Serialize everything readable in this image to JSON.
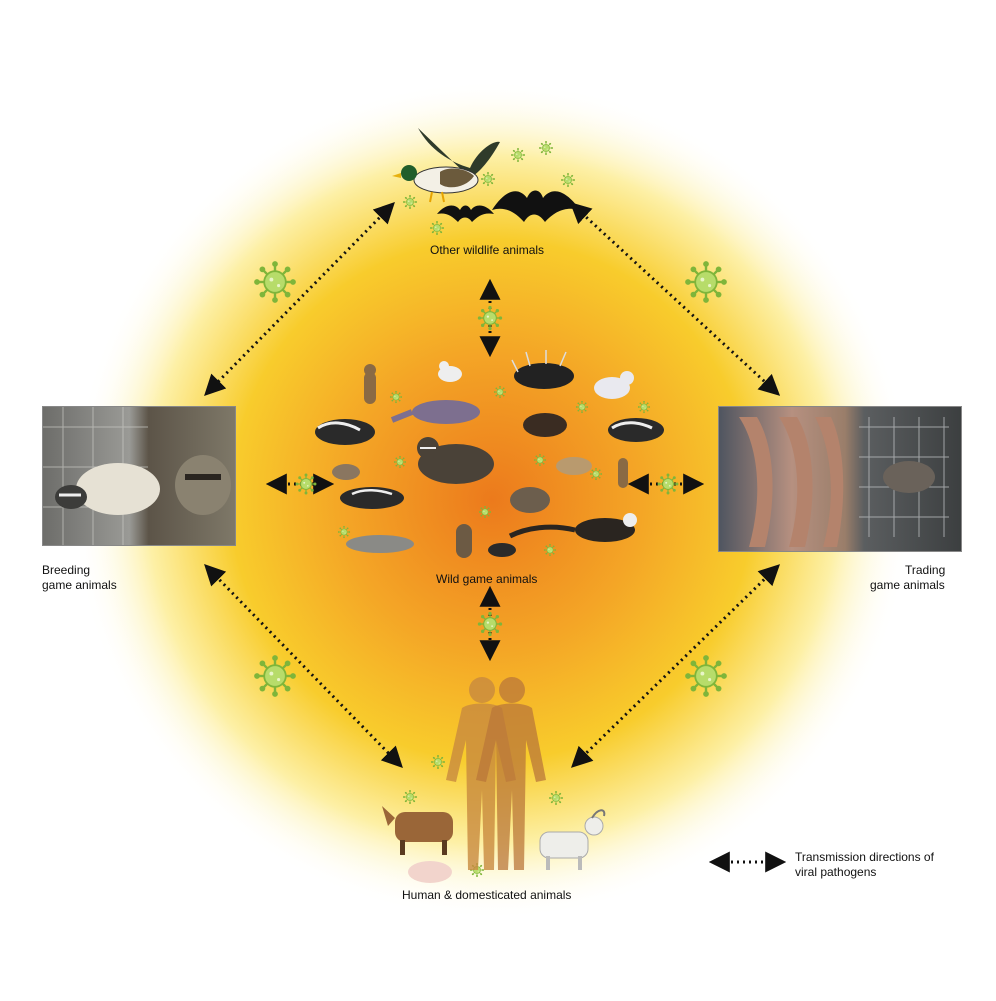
{
  "nodes": {
    "wildlife": {
      "label": "Other wildlife animals"
    },
    "wild_game": {
      "label": "Wild game animals"
    },
    "breeding": {
      "label_line1": "Breeding",
      "label_line2": "game animals"
    },
    "trading": {
      "label_line1": "Trading",
      "label_line2": "game animals"
    },
    "human": {
      "label": "Human & domesticated animals"
    }
  },
  "legend": {
    "line1": "Transmission directions of",
    "line2": "viral pathogens",
    "symbol": "dotted-double-arrow"
  },
  "colors": {
    "glow_center": "#ec7a1c",
    "glow_mid": "#f6c21e",
    "glow_outer": "#fdf3b8",
    "virus": "#8dc63f",
    "arrow": "#111111",
    "silhouette": "#c8893e"
  }
}
